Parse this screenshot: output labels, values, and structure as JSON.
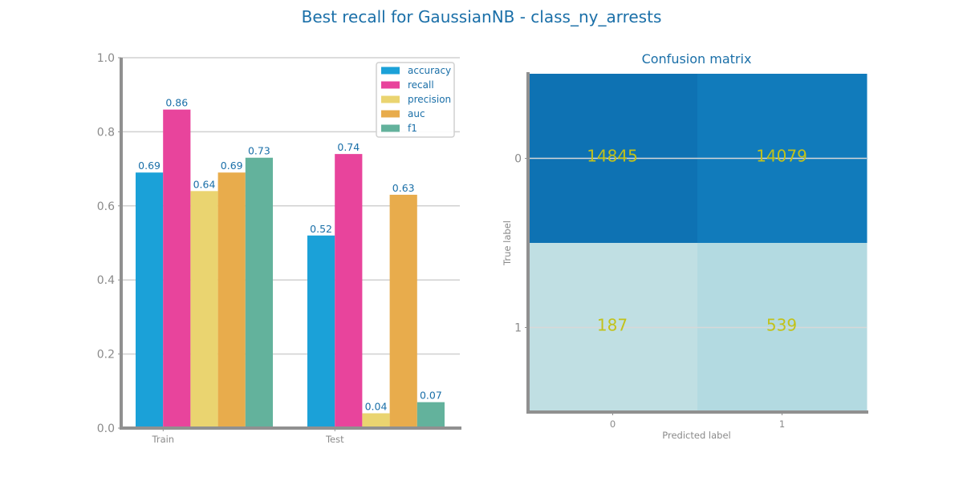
{
  "title": "Best recall for GaussianNB  - class_ny_arrests",
  "chart_data": [
    {
      "type": "bar",
      "categories": [
        "Train",
        "Test"
      ],
      "series": [
        {
          "name": "accuracy",
          "values": [
            0.69,
            0.52
          ],
          "color": "#1ba1d8"
        },
        {
          "name": "recall",
          "values": [
            0.86,
            0.74
          ],
          "color": "#e8449c"
        },
        {
          "name": "precision",
          "values": [
            0.64,
            0.04
          ],
          "color": "#ead470"
        },
        {
          "name": "auc",
          "values": [
            0.69,
            0.63
          ],
          "color": "#e8ac4c"
        },
        {
          "name": "f1",
          "values": [
            0.73,
            0.07
          ],
          "color": "#63b29c"
        }
      ],
      "ylim": [
        0,
        1
      ],
      "yticks": [
        "0.0",
        "0.2",
        "0.4",
        "0.6",
        "0.8",
        "1.0"
      ],
      "grid": true,
      "legend": "top-right"
    },
    {
      "type": "heatmap",
      "title": "Confusion matrix",
      "xlabel": "Predicted label",
      "ylabel": "True label",
      "xticks": [
        "0",
        "1"
      ],
      "yticks": [
        "0",
        "1"
      ],
      "matrix": [
        [
          14845,
          14079
        ],
        [
          187,
          539
        ]
      ],
      "cell_colors": [
        [
          "#0e72b3",
          "#117bbb"
        ],
        [
          "#c0dfe3",
          "#b3dae1"
        ]
      ]
    }
  ]
}
